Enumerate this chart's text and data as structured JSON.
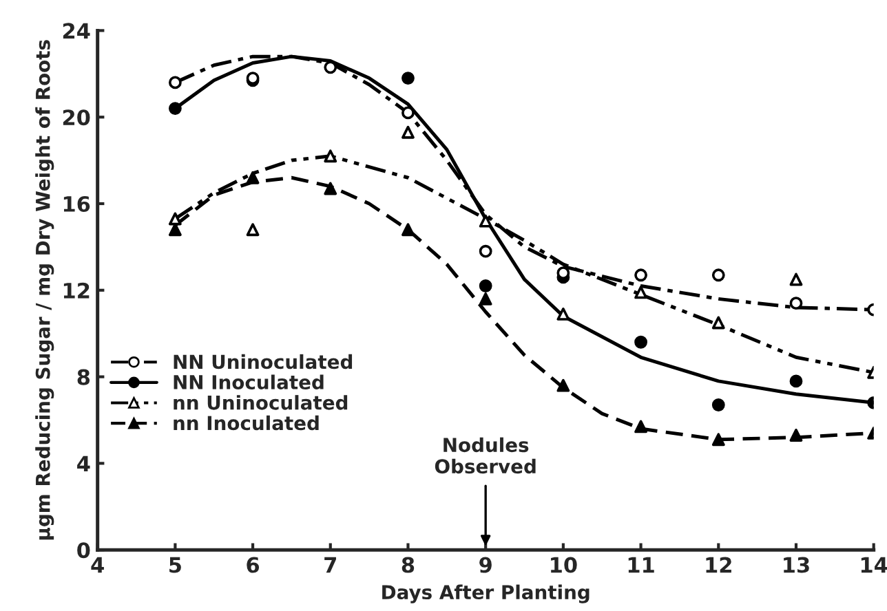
{
  "chart_data": {
    "type": "scatter",
    "xlabel": "Days After Planting",
    "ylabel": "μgm Reducing Sugar / mg Dry Weight of Roots",
    "xlim": [
      4,
      14
    ],
    "xticks": [
      4,
      5,
      6,
      7,
      8,
      9,
      10,
      11,
      12,
      13,
      14
    ],
    "ylim": [
      0,
      24
    ],
    "yticks": [
      0,
      4,
      8,
      12,
      16,
      20,
      24
    ],
    "grid": false,
    "legend": "left",
    "annotations": [
      "Nodules\nObserved"
    ],
    "series": [
      {
        "name": "NN Uninoculated",
        "marker": "circle",
        "line_style": "dashdot",
        "color": "#ffffff",
        "x": [
          5,
          6,
          7,
          8,
          9,
          10,
          11,
          12,
          13,
          14
        ],
        "values": [
          21.6,
          21.8,
          22.3,
          20.2,
          13.8,
          12.8,
          12.7,
          12.7,
          11.4,
          11.1
        ]
      },
      {
        "name": "NN Inoculated",
        "marker": "circle",
        "line_style": "solid",
        "color": "#000000",
        "x": [
          5,
          6,
          7,
          8,
          9,
          10,
          11,
          12,
          13,
          14
        ],
        "values": [
          20.4,
          21.7,
          null,
          21.8,
          12.2,
          12.6,
          9.6,
          6.7,
          7.8,
          6.8
        ]
      },
      {
        "name": "nn Uninoculated",
        "marker": "triangle",
        "line_style": "dashdotdot",
        "color": "#ffffff",
        "x": [
          5,
          6,
          7,
          8,
          9,
          10,
          11,
          12,
          13,
          14
        ],
        "values": [
          15.3,
          14.8,
          18.2,
          19.3,
          15.2,
          10.9,
          11.9,
          10.5,
          12.5,
          8.2
        ]
      },
      {
        "name": "nn Inoculated",
        "marker": "triangle",
        "line_style": "dashed",
        "color": "#000000",
        "x": [
          5,
          6,
          7,
          8,
          9,
          10,
          11,
          12,
          13,
          14
        ],
        "values": [
          14.8,
          17.2,
          16.7,
          14.8,
          11.6,
          7.6,
          5.7,
          5.1,
          5.3,
          5.4
        ]
      },
      {
        "type": "line",
        "line_style": "dashdot",
        "color": "#000000",
        "x": [
          5,
          5.5,
          6,
          6.5,
          7,
          7.5,
          8,
          8.5,
          9,
          9.5,
          10,
          11,
          12,
          13,
          14
        ],
        "values": [
          21.6,
          22.4,
          22.8,
          22.8,
          22.5,
          21.5,
          20.2,
          18,
          15.5,
          14,
          13.1,
          12.2,
          11.6,
          11.2,
          11.1
        ]
      },
      {
        "type": "line",
        "line_style": "solid",
        "color": "#000000",
        "x": [
          5,
          5.5,
          6,
          6.5,
          7,
          7.5,
          8,
          8.5,
          9,
          9.5,
          10,
          11,
          12,
          13,
          14
        ],
        "values": [
          20.4,
          21.7,
          22.5,
          22.8,
          22.6,
          21.8,
          20.6,
          18.5,
          15.3,
          12.5,
          10.8,
          8.9,
          7.8,
          7.2,
          6.8
        ]
      },
      {
        "type": "line",
        "line_style": "dashdotdot",
        "color": "#000000",
        "x": [
          5,
          5.5,
          6,
          6.5,
          7,
          8,
          9,
          9.5,
          10,
          11,
          12,
          13,
          14
        ],
        "values": [
          15.3,
          16.5,
          17.4,
          18,
          18.2,
          17.2,
          15.3,
          14.3,
          13.2,
          11.8,
          10.4,
          8.9,
          8.2
        ]
      },
      {
        "type": "line",
        "line_style": "dashed",
        "color": "#000000",
        "x": [
          5,
          5.5,
          6,
          6.5,
          7,
          7.5,
          8,
          8.5,
          9,
          9.5,
          10,
          10.5,
          11,
          12,
          13,
          14
        ],
        "values": [
          15.0,
          16.4,
          17.0,
          17.2,
          16.8,
          16.0,
          14.8,
          13.2,
          11.0,
          9.0,
          7.5,
          6.3,
          5.6,
          5.1,
          5.2,
          5.4
        ]
      }
    ]
  }
}
